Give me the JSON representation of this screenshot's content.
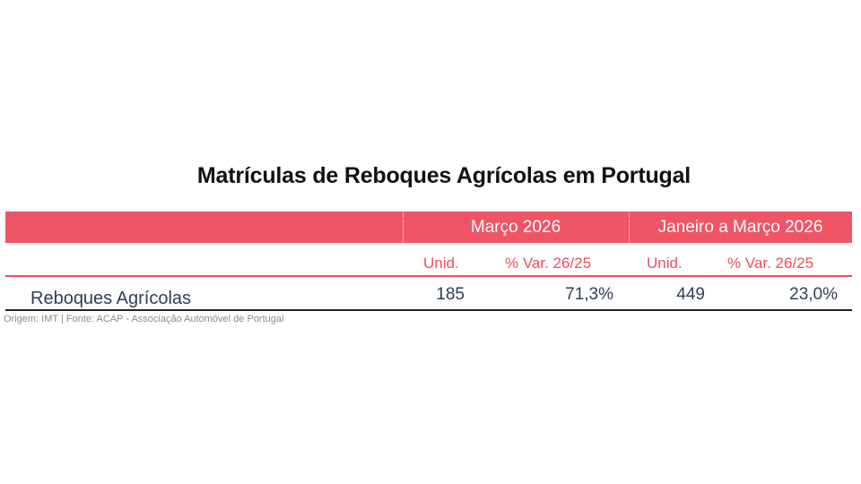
{
  "title": "Matrículas de Reboques Agrícolas em Portugal",
  "colors": {
    "header_band": "#f05566",
    "subheader_text": "#ee4d5d",
    "row_text": "#2f3e58",
    "footnote_text": "#8a8a8a"
  },
  "table": {
    "groups": [
      {
        "label": "Março 2026"
      },
      {
        "label": "Janeiro a Março 2026"
      }
    ],
    "subheaders": [
      "Unid.",
      "% Var. 26/25",
      "Unid.",
      "% Var. 26/25"
    ],
    "rows": [
      {
        "label": "Reboques Agrícolas",
        "values": [
          "185",
          "71,3%",
          "449",
          "23,0%"
        ]
      }
    ]
  },
  "footnote": "Origem: IMT | Fonte: ACAP - Associação Automóvel de Portugal"
}
